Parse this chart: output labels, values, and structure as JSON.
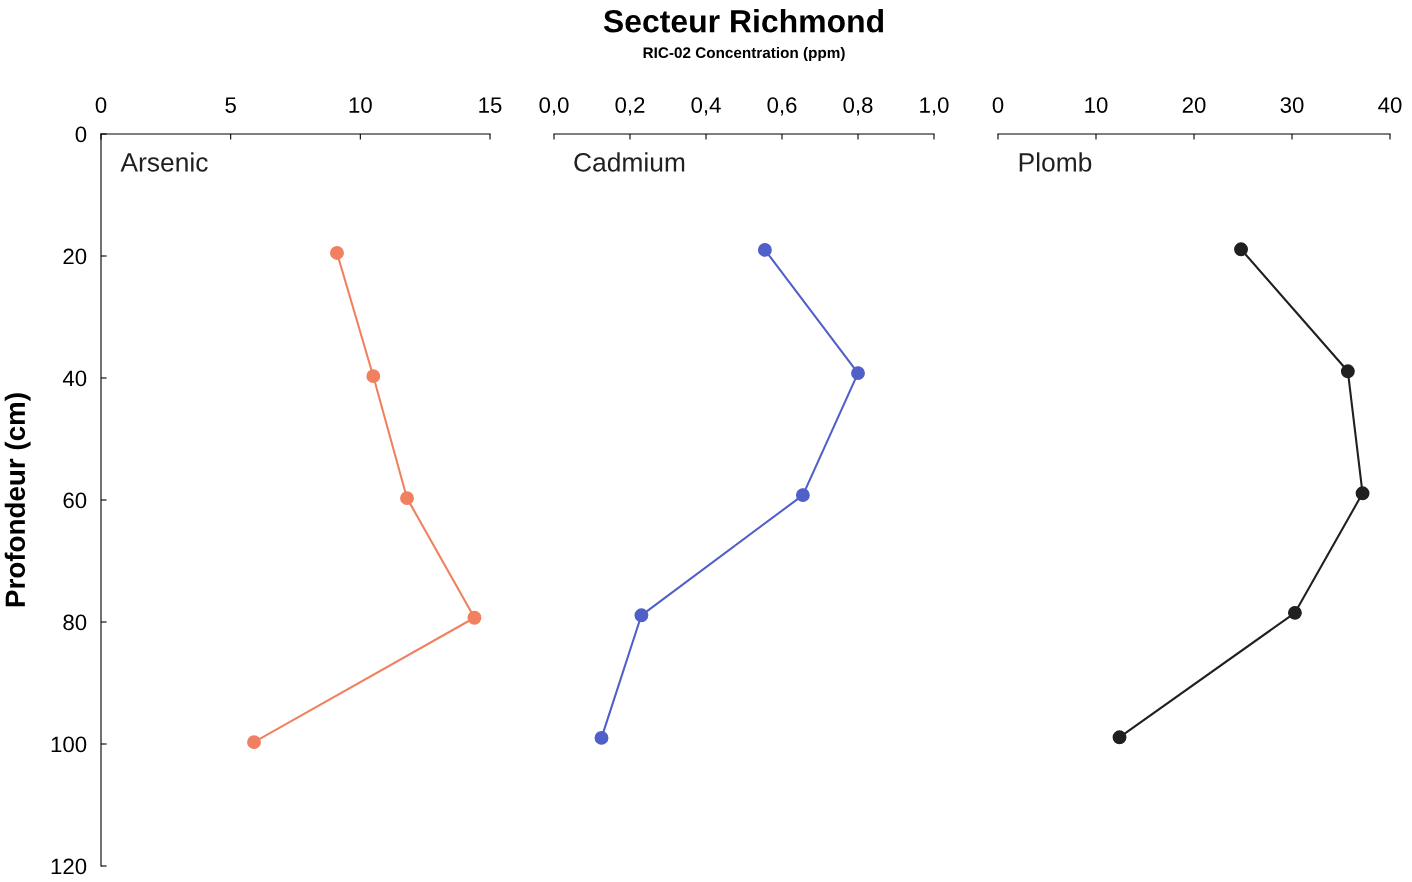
{
  "chart_data": [
    {
      "type": "line",
      "ylabel": "Profondeur (cm)",
      "marker": "circle",
      "grid": false,
      "legend": false,
      "xlim": [
        0,
        15
      ],
      "xticks": [
        0,
        5,
        10,
        15
      ],
      "ylim": [
        120,
        0
      ],
      "yticks": [
        0,
        20,
        40,
        60,
        80,
        100,
        120
      ],
      "series": [
        {
          "name": "Arsenic",
          "color": "#f08060",
          "x": [
            9.1,
            10.5,
            11.8,
            14.4,
            5.9
          ],
          "values": [
            19.5,
            39.7,
            59.7,
            79.3,
            99.7
          ]
        }
      ]
    },
    {
      "type": "line",
      "title": "Secteur Richmond",
      "subtitle": "RIC-02 Concentration (ppm)",
      "marker": "circle",
      "grid": false,
      "legend": false,
      "tick_labels": "x",
      "xlim": [
        0,
        1
      ],
      "xticks": [
        {
          "value": 0,
          "label": "0,0"
        },
        {
          "value": 0.2,
          "label": "0,2"
        },
        {
          "value": 0.4,
          "label": "0,4"
        },
        {
          "value": 0.6,
          "label": "0,6"
        },
        {
          "value": 0.8,
          "label": "0,8"
        },
        {
          "value": 1,
          "label": "1,0"
        }
      ],
      "ylim": [
        120,
        0
      ],
      "series": [
        {
          "name": "Cadmium",
          "color": "#5060c8",
          "x": [
            0.555,
            0.8,
            0.655,
            0.23,
            0.125
          ],
          "values": [
            19,
            39.2,
            59.2,
            78.9,
            99
          ]
        }
      ]
    },
    {
      "type": "line",
      "marker": "circle",
      "grid": false,
      "legend": false,
      "tick_labels": "x",
      "xlim": [
        0,
        40
      ],
      "xticks": [
        0,
        10,
        20,
        30,
        40
      ],
      "ylim": [
        120,
        0
      ],
      "series": [
        {
          "name": "Plomb",
          "color": "#202020",
          "x": [
            24.8,
            35.7,
            37.2,
            30.3,
            12.4
          ],
          "values": [
            18.9,
            38.9,
            58.9,
            78.5,
            98.9
          ]
        }
      ]
    }
  ]
}
